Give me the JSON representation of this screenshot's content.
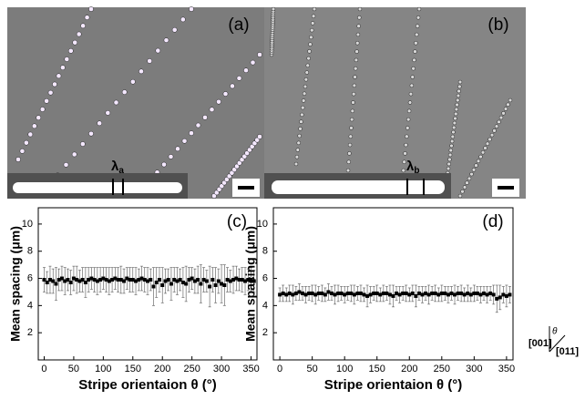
{
  "panels": [
    {
      "label": "(a)",
      "lambda": "λ",
      "sub": "a"
    },
    {
      "label": "(b)",
      "lambda": "λ",
      "sub": "b"
    }
  ],
  "crystal_axes": {
    "top": "[001]",
    "bottom": "[011]",
    "angle": "θ"
  },
  "chart_data": [
    {
      "type": "scatter",
      "panel_label": "(c)",
      "x_label": "Stripe orientaion θ (°)",
      "y_label": "Mean spacing (μm)",
      "xlim": [
        -10,
        360
      ],
      "xticks": [
        0,
        50,
        100,
        150,
        200,
        250,
        300,
        350
      ],
      "ylim": [
        0,
        11.2
      ],
      "yticks": [
        2,
        4,
        6,
        8,
        10
      ],
      "x": [
        0,
        5,
        10,
        15,
        20,
        25,
        30,
        35,
        40,
        45,
        50,
        55,
        60,
        65,
        70,
        75,
        80,
        85,
        90,
        95,
        100,
        105,
        110,
        115,
        120,
        125,
        130,
        135,
        140,
        145,
        150,
        155,
        160,
        165,
        170,
        175,
        180,
        185,
        190,
        195,
        200,
        205,
        210,
        215,
        220,
        225,
        230,
        235,
        240,
        245,
        250,
        255,
        260,
        265,
        270,
        275,
        280,
        285,
        290,
        295,
        300,
        305,
        310,
        315,
        320,
        325,
        330,
        335,
        340,
        345,
        350,
        355
      ],
      "series": [
        {
          "color": "#000000",
          "values": [
            5.9,
            5.7,
            5.9,
            5.8,
            5.6,
            5.9,
            6.0,
            5.8,
            5.9,
            5.7,
            6.0,
            5.9,
            5.8,
            5.9,
            5.7,
            5.9,
            6.0,
            5.9,
            5.8,
            5.9,
            6.0,
            5.9,
            5.8,
            5.9,
            6.0,
            5.9,
            5.9,
            5.8,
            6.0,
            5.9,
            5.9,
            5.8,
            5.9,
            6.0,
            5.9,
            5.8,
            5.9,
            5.4,
            5.7,
            5.9,
            5.5,
            5.8,
            5.9,
            5.6,
            5.9,
            5.8,
            5.9,
            5.7,
            5.6,
            5.9,
            6.0,
            5.8,
            5.9,
            5.6,
            5.9,
            5.8,
            5.4,
            5.9,
            5.5,
            5.8,
            5.6,
            5.5,
            5.9,
            5.8,
            5.9,
            6.0,
            5.9,
            5.9,
            5.8,
            5.9,
            5.9,
            5.8
          ],
          "errors": [
            0.9,
            0.8,
            1.0,
            0.9,
            1.2,
            0.8,
            0.9,
            1.0,
            0.8,
            0.9,
            0.9,
            1.0,
            0.8,
            0.9,
            1.1,
            0.9,
            0.8,
            0.9,
            1.0,
            0.9,
            0.8,
            0.9,
            1.0,
            0.9,
            0.8,
            0.9,
            1.0,
            0.9,
            0.8,
            0.9,
            0.9,
            1.0,
            0.8,
            0.9,
            0.9,
            1.0,
            0.8,
            1.4,
            1.1,
            0.9,
            1.3,
            0.9,
            0.8,
            1.2,
            0.9,
            1.0,
            0.8,
            1.1,
            1.3,
            0.9,
            0.8,
            0.9,
            1.0,
            1.4,
            0.9,
            0.8,
            1.5,
            0.9,
            1.3,
            0.9,
            1.4,
            1.5,
            0.9,
            0.8,
            1.0,
            0.9,
            0.8,
            0.9,
            1.0,
            0.8,
            0.9,
            0.8
          ]
        }
      ]
    },
    {
      "type": "scatter",
      "panel_label": "(d)",
      "x_label": "Stripe orientaion θ (°)",
      "y_label": "Mean spacing (μm)",
      "xlim": [
        -10,
        360
      ],
      "xticks": [
        0,
        50,
        100,
        150,
        200,
        250,
        300,
        350
      ],
      "ylim": [
        0,
        11.2
      ],
      "yticks": [
        2,
        4,
        6,
        8,
        10
      ],
      "x": [
        0,
        5,
        10,
        15,
        20,
        25,
        30,
        35,
        40,
        45,
        50,
        55,
        60,
        65,
        70,
        75,
        80,
        85,
        90,
        95,
        100,
        105,
        110,
        115,
        120,
        125,
        130,
        135,
        140,
        145,
        150,
        155,
        160,
        165,
        170,
        175,
        180,
        185,
        190,
        195,
        200,
        205,
        210,
        215,
        220,
        225,
        230,
        235,
        240,
        245,
        250,
        255,
        260,
        265,
        270,
        275,
        280,
        285,
        290,
        295,
        300,
        305,
        310,
        315,
        320,
        325,
        330,
        335,
        340,
        345,
        350,
        355
      ],
      "series": [
        {
          "color": "#000000",
          "values": [
            4.8,
            4.9,
            4.8,
            4.9,
            4.8,
            4.9,
            5.0,
            4.9,
            4.8,
            4.9,
            4.9,
            4.8,
            4.9,
            4.9,
            4.8,
            5.0,
            4.9,
            4.8,
            4.9,
            4.9,
            4.8,
            4.9,
            4.9,
            4.8,
            4.9,
            4.9,
            4.8,
            4.7,
            4.8,
            4.9,
            4.9,
            4.8,
            4.9,
            4.9,
            4.8,
            4.7,
            4.9,
            4.8,
            4.9,
            4.9,
            4.8,
            4.9,
            4.7,
            4.9,
            4.8,
            4.9,
            4.8,
            4.9,
            4.9,
            4.8,
            4.9,
            4.9,
            4.8,
            4.9,
            4.8,
            4.9,
            4.9,
            4.8,
            4.9,
            4.8,
            4.9,
            4.9,
            4.8,
            4.9,
            4.8,
            4.9,
            4.8,
            4.5,
            4.6,
            4.8,
            4.7,
            4.8
          ],
          "errors": [
            0.5,
            0.6,
            0.5,
            0.6,
            0.7,
            0.5,
            0.6,
            0.5,
            0.6,
            0.5,
            0.6,
            0.7,
            0.5,
            0.6,
            0.5,
            0.6,
            0.5,
            0.7,
            0.6,
            0.5,
            0.6,
            0.5,
            0.6,
            0.7,
            0.5,
            0.6,
            0.5,
            0.8,
            0.6,
            0.5,
            0.6,
            0.5,
            0.6,
            0.5,
            0.7,
            0.8,
            0.5,
            0.6,
            0.5,
            0.6,
            0.5,
            0.6,
            0.8,
            0.5,
            0.6,
            0.5,
            0.7,
            0.5,
            0.6,
            0.5,
            0.6,
            0.5,
            0.6,
            0.5,
            0.7,
            0.5,
            0.6,
            0.5,
            0.6,
            0.5,
            0.6,
            0.5,
            0.6,
            0.5,
            0.6,
            0.5,
            0.7,
            1.0,
            0.9,
            0.6,
            0.8,
            0.6
          ]
        }
      ]
    }
  ]
}
